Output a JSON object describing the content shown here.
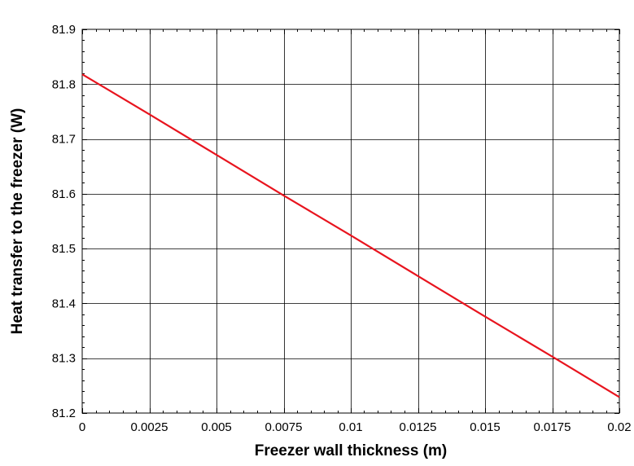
{
  "chart_data": {
    "type": "line",
    "title": "",
    "xlabel": "Freezer wall thickness (m)",
    "ylabel": "Heat transfer to the freezer (W)",
    "xlim": [
      0,
      0.02
    ],
    "ylim": [
      81.2,
      81.9
    ],
    "x_ticks": [
      0,
      0.0025,
      0.005,
      0.0075,
      0.01,
      0.0125,
      0.015,
      0.0175,
      0.02
    ],
    "x_tick_labels": [
      "0",
      "0.0025",
      "0.005",
      "0.0075",
      "0.01",
      "0.0125",
      "0.015",
      "0.0175",
      "0.02"
    ],
    "y_ticks": [
      81.2,
      81.3,
      81.4,
      81.5,
      81.6,
      81.7,
      81.8,
      81.9
    ],
    "y_tick_labels": [
      "81.2",
      "81.3",
      "81.4",
      "81.5",
      "81.6",
      "81.7",
      "81.8",
      "81.9"
    ],
    "grid": true,
    "series": [
      {
        "color": "#e8141e",
        "x": [
          0,
          0.0025,
          0.005,
          0.0075,
          0.01,
          0.0125,
          0.015,
          0.0175,
          0.02
        ],
        "y": [
          81.818,
          81.745,
          81.671,
          81.597,
          81.524,
          81.45,
          81.376,
          81.303,
          81.229
        ]
      }
    ]
  }
}
